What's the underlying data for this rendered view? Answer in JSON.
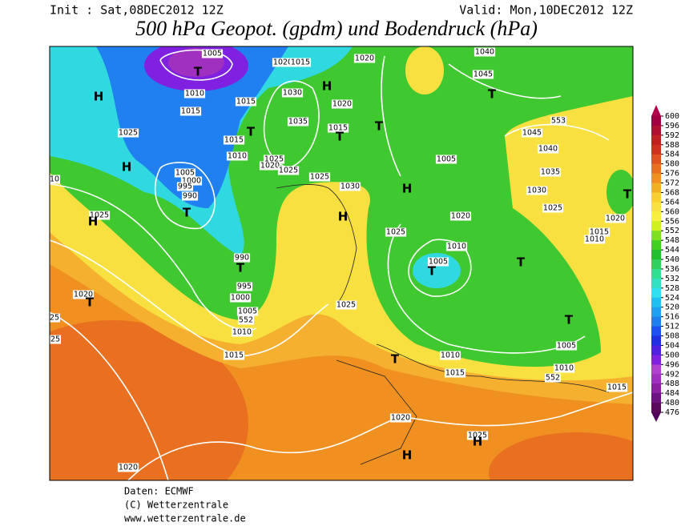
{
  "header": {
    "init": "Init : Sat,08DEC2012 12Z",
    "valid": "Valid: Mon,10DEC2012  12Z",
    "title": "500 hPa Geopot. (gpdm) und Bodendruck (hPa)"
  },
  "footer": {
    "source": "Daten: ECMWF",
    "copyright": "(C) Wetterzentrale",
    "url": "www.wetterzentrale.de"
  },
  "colorbar": {
    "ticks": [
      600,
      596,
      592,
      588,
      584,
      580,
      576,
      572,
      568,
      564,
      560,
      556,
      552,
      548,
      544,
      540,
      536,
      532,
      528,
      524,
      520,
      516,
      512,
      508,
      504,
      500,
      496,
      492,
      488,
      484,
      480,
      476
    ],
    "colors": [
      "#a00040",
      "#b01030",
      "#c02020",
      "#d03020",
      "#e05020",
      "#e87020",
      "#f09020",
      "#f0b020",
      "#f8d030",
      "#f8e040",
      "#f8f040",
      "#d0f020",
      "#80e020",
      "#40d020",
      "#20c030",
      "#30d060",
      "#30e090",
      "#30e0c0",
      "#30e0f0",
      "#20c0f0",
      "#20a0f0",
      "#2080f0",
      "#2050f0",
      "#2030e0",
      "#5020e0",
      "#8020e0",
      "#b040d0",
      "#a030c0",
      "#8a1fa0",
      "#6b1480",
      "#5a0a5a"
    ],
    "top_color": "#b0004a",
    "bottom_color": "#50005a"
  },
  "map": {
    "labels": [
      "1005",
      "1020",
      "1015",
      "1020",
      "1040",
      "1045",
      "H",
      "T",
      "1010",
      "1015",
      "1015",
      "1030",
      "H",
      "1020",
      "T",
      "1035",
      "1015",
      "T",
      "T",
      "1025",
      "T",
      "1015",
      "553",
      "1045",
      "H",
      "1010",
      "1025",
      "1020",
      "1025",
      "1040",
      "1005",
      "1000",
      "995",
      "990",
      "1025",
      "1030",
      "1005",
      "1035",
      "H",
      "1030",
      "T",
      "H",
      "1025",
      "H",
      "1025",
      "1020",
      "1020",
      "1015",
      "1010",
      "1025",
      "1010",
      "990",
      "T",
      "1005",
      "T",
      "T",
      "995",
      "1000",
      "1020",
      "T",
      "1025",
      "1005",
      "552",
      "1010",
      "T",
      "1005",
      "1015",
      "T",
      "1010",
      "1015",
      "1010",
      "552",
      "1015",
      "1020",
      "1025",
      "H",
      "H",
      "1020",
      "25",
      "25",
      "10",
      "T"
    ]
  }
}
